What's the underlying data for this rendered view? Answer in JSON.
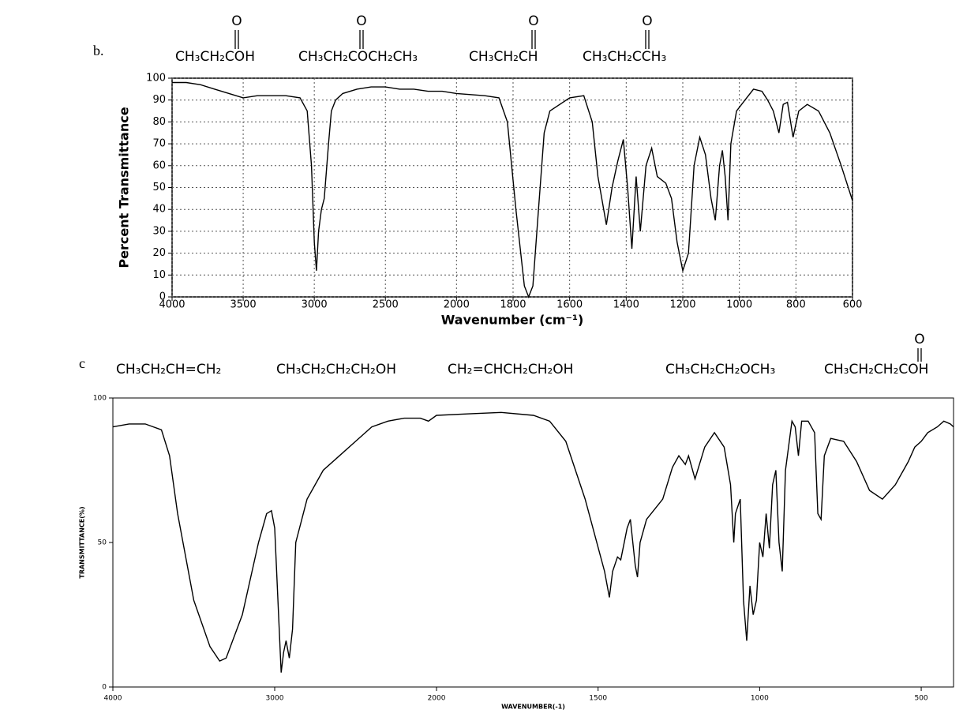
{
  "chart_data": [
    {
      "type": "line",
      "label": "b.",
      "options": [
        {
          "formula": "CH₃CH₂COH",
          "carbonyl": "O"
        },
        {
          "formula": "CH₃CH₂COCH₂CH₃",
          "carbonyl": "O"
        },
        {
          "formula": "CH₃CH₂CH",
          "carbonyl": "O"
        },
        {
          "formula": "CH₃CH₂CCH₃",
          "carbonyl": "O"
        }
      ],
      "ylabel": "Percent Transmittance",
      "xlabel": "Wavenumber (cm⁻¹)",
      "xlim": [
        4000,
        600
      ],
      "xbreak": 2000,
      "ylim": [
        0,
        100
      ],
      "xticks": [
        4000,
        3500,
        3000,
        2500,
        2000,
        1800,
        1600,
        1400,
        1200,
        1000,
        800,
        600
      ],
      "yticks": [
        0,
        10,
        20,
        30,
        40,
        50,
        60,
        70,
        80,
        90,
        100
      ],
      "grid": true,
      "color": "#000000",
      "x": [
        4000,
        3900,
        3800,
        3700,
        3600,
        3500,
        3400,
        3300,
        3200,
        3100,
        3050,
        3020,
        3000,
        2985,
        2970,
        2950,
        2930,
        2900,
        2880,
        2850,
        2800,
        2700,
        2600,
        2500,
        2400,
        2300,
        2200,
        2100,
        2000,
        1900,
        1850,
        1820,
        1790,
        1760,
        1745,
        1730,
        1710,
        1690,
        1670,
        1600,
        1550,
        1520,
        1500,
        1470,
        1450,
        1430,
        1410,
        1395,
        1380,
        1365,
        1350,
        1330,
        1310,
        1290,
        1260,
        1240,
        1220,
        1200,
        1180,
        1160,
        1140,
        1120,
        1100,
        1085,
        1070,
        1060,
        1050,
        1040,
        1030,
        1010,
        980,
        950,
        920,
        900,
        880,
        860,
        845,
        830,
        810,
        790,
        760,
        720,
        680,
        640,
        600
      ],
      "values": [
        98,
        98,
        97,
        95,
        93,
        91,
        92,
        92,
        92,
        91,
        85,
        60,
        25,
        12,
        30,
        40,
        45,
        70,
        85,
        90,
        93,
        95,
        96,
        96,
        95,
        95,
        94,
        94,
        93,
        92,
        91,
        80,
        40,
        5,
        0,
        5,
        40,
        75,
        85,
        91,
        92,
        80,
        55,
        33,
        50,
        62,
        72,
        50,
        22,
        55,
        30,
        60,
        68,
        55,
        52,
        45,
        25,
        12,
        20,
        60,
        73,
        65,
        45,
        35,
        60,
        67,
        55,
        35,
        70,
        85,
        90,
        95,
        94,
        90,
        85,
        75,
        88,
        89,
        73,
        85,
        88,
        85,
        75,
        60,
        44
      ]
    },
    {
      "type": "line",
      "label": "c",
      "options": [
        {
          "formula": "CH₃CH₂CH=CH₂"
        },
        {
          "formula": "CH₃CH₂CH₂CH₂OH"
        },
        {
          "formula": "CH₂=CHCH₂CH₂OH"
        },
        {
          "formula": "CH₃CH₂CH₂OCH₃"
        },
        {
          "formula": "CH₃CH₂CH₂COH",
          "carbonyl": "O"
        }
      ],
      "ylabel": "TRANSMITTANCE(%)",
      "xlabel": "WAVENUMBER(-1)",
      "xlim": [
        4000,
        400
      ],
      "xbreak": 2000,
      "ylim": [
        0,
        100
      ],
      "xticks": [
        4000,
        3000,
        2000,
        1500,
        1000,
        500
      ],
      "yticks": [
        0,
        50,
        100
      ],
      "grid": false,
      "color": "#000000",
      "x": [
        4000,
        3900,
        3800,
        3700,
        3650,
        3600,
        3500,
        3400,
        3340,
        3300,
        3200,
        3100,
        3050,
        3020,
        3000,
        2980,
        2960,
        2945,
        2930,
        2910,
        2890,
        2870,
        2800,
        2700,
        2600,
        2500,
        2400,
        2300,
        2200,
        2100,
        2050,
        2000,
        1900,
        1800,
        1700,
        1650,
        1600,
        1540,
        1480,
        1465,
        1455,
        1440,
        1430,
        1410,
        1400,
        1385,
        1378,
        1370,
        1350,
        1300,
        1270,
        1250,
        1230,
        1220,
        1200,
        1170,
        1140,
        1110,
        1090,
        1080,
        1075,
        1060,
        1050,
        1040,
        1030,
        1020,
        1010,
        1000,
        990,
        980,
        970,
        960,
        950,
        940,
        930,
        920,
        900,
        890,
        880,
        870,
        850,
        830,
        820,
        810,
        800,
        780,
        740,
        700,
        660,
        620,
        580,
        540,
        520,
        500,
        480,
        450,
        430,
        410,
        400
      ],
      "values": [
        90,
        91,
        91,
        89,
        80,
        60,
        30,
        14,
        9,
        10,
        25,
        50,
        60,
        61,
        55,
        30,
        5,
        12,
        16,
        10,
        20,
        50,
        65,
        75,
        80,
        85,
        90,
        92,
        93,
        93,
        92,
        94,
        94.5,
        95,
        94,
        92,
        85,
        65,
        40,
        31,
        40,
        45,
        44,
        55,
        58,
        42,
        38,
        50,
        58,
        65,
        76,
        80,
        77,
        80,
        72,
        83,
        88,
        83,
        70,
        50,
        60,
        65,
        30,
        16,
        35,
        25,
        30,
        50,
        45,
        60,
        48,
        70,
        75,
        50,
        40,
        75,
        92,
        90,
        80,
        92,
        92,
        88,
        60,
        58,
        80,
        86,
        85,
        78,
        68,
        65,
        70,
        78,
        83,
        85,
        88,
        90,
        92,
        91,
        90
      ]
    }
  ]
}
